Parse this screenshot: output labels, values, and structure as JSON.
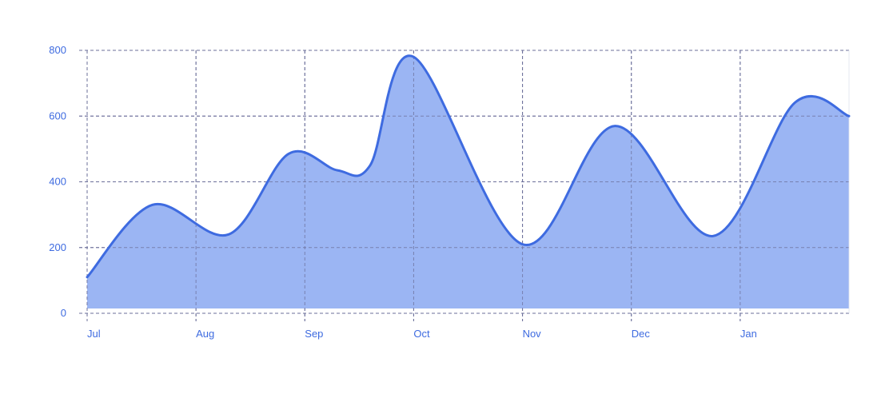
{
  "colors": {
    "area_fill": "#9bb5f3",
    "line": "#3e6be0",
    "grid": "#6b6f9a",
    "axis": "#6b6f9a",
    "tick_label": "#3e6be0",
    "background": "#ffffff"
  },
  "chart_data": {
    "type": "area",
    "title": "",
    "xlabel": "",
    "ylabel": "",
    "x_ticks": [
      "Jul",
      "Aug",
      "Sep",
      "Oct",
      "Nov",
      "Dec",
      "Jan"
    ],
    "y_ticks": [
      0,
      200,
      400,
      600,
      800
    ],
    "ylim": [
      0,
      800
    ],
    "grid": true,
    "legend": "none",
    "curve": "smooth",
    "series": [
      {
        "x": [
          0.0,
          0.6,
          1.3,
          1.85,
          2.3,
          2.6,
          3.0,
          4.0,
          4.85,
          5.75,
          6.5,
          7.0
        ],
        "values": [
          110,
          330,
          240,
          485,
          435,
          450,
          780,
          210,
          570,
          235,
          640,
          600
        ]
      }
    ]
  }
}
